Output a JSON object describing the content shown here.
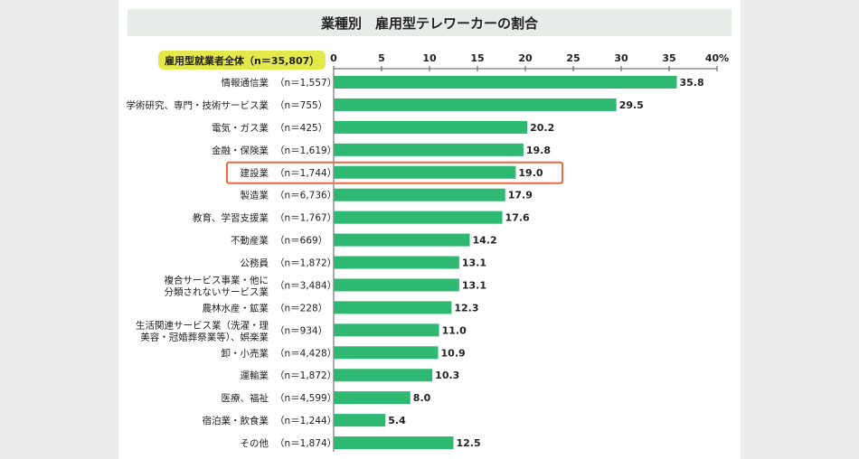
{
  "title": "業種別　雇用型テレワーカーの割合",
  "total_label": "雇用型就業者全体（n＝35,807）",
  "colors": {
    "bar": "#2eb872",
    "highlight": "#e8693f",
    "title_bg": "#e6ece8",
    "badge_bg": "#e3e94a"
  },
  "chart_data": {
    "type": "bar",
    "orientation": "horizontal",
    "title": "業種別　雇用型テレワーカーの割合",
    "categories": [
      [
        "情報通信業"
      ],
      [
        "学術研究、専門・技術サービス業"
      ],
      [
        "電気・ガス業"
      ],
      [
        "金融・保険業"
      ],
      [
        "建設業"
      ],
      [
        "製造業"
      ],
      [
        "教育、学習支援業"
      ],
      [
        "不動産業"
      ],
      [
        "公務員"
      ],
      [
        "複合サービス事業・他に",
        "分類されないサービス業"
      ],
      [
        "農林水産・鉱業"
      ],
      [
        "生活関連サービス業（洗濯・理",
        "美容・冠婚葬祭業等）、娯楽業"
      ],
      [
        "卸・小売業"
      ],
      [
        "運輸業"
      ],
      [
        "医療、福祉"
      ],
      [
        "宿泊業・飲食業"
      ],
      [
        "その他"
      ]
    ],
    "n_labels": [
      "（n＝1,557）",
      "（n＝755）",
      "（n＝425）",
      "（n＝1,619）",
      "（n＝1,744）",
      "（n＝6,736）",
      "（n＝1,767）",
      "（n＝669）",
      "（n＝1,872）",
      "（n＝3,484）",
      "（n＝228）",
      "（n＝934）",
      "（n＝4,428）",
      "（n＝1,872）",
      "（n＝4,599）",
      "（n＝1,244）",
      "（n＝1,874）"
    ],
    "values": [
      35.8,
      29.5,
      20.2,
      19.8,
      19.0,
      17.9,
      17.6,
      14.2,
      13.1,
      13.1,
      12.3,
      11.0,
      10.9,
      10.3,
      8.0,
      5.4,
      12.5
    ],
    "value_labels": [
      "35.8",
      "29.5",
      "20.2",
      "19.8",
      "19.0",
      "17.9",
      "17.6",
      "14.2",
      "13.1",
      "13.1",
      "12.3",
      "11.0",
      "10.9",
      "10.3",
      "8.0",
      "5.4",
      "12.5"
    ],
    "xlim": [
      0,
      40
    ],
    "ticks": [
      "0",
      "5",
      "10",
      "15",
      "20",
      "25",
      "30",
      "35",
      "40%"
    ],
    "tick_values": [
      0,
      5,
      10,
      15,
      20,
      25,
      30,
      35,
      40
    ],
    "highlight_index": 4,
    "grid": false
  }
}
